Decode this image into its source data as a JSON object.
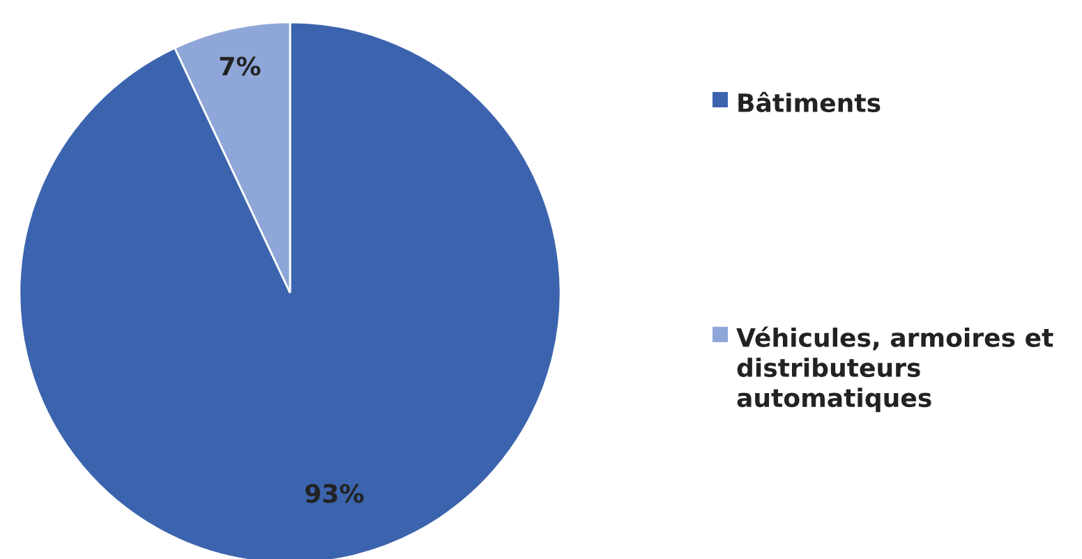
{
  "chart_data": {
    "type": "pie",
    "categories": [
      "Bâtiments",
      "Véhicules, armoires et distributeurs automatiques"
    ],
    "values": [
      93,
      7
    ],
    "colors": [
      "#3c64ae",
      "#8fa6d8"
    ],
    "value_labels": [
      "93%",
      "7%"
    ],
    "legend": "right"
  }
}
